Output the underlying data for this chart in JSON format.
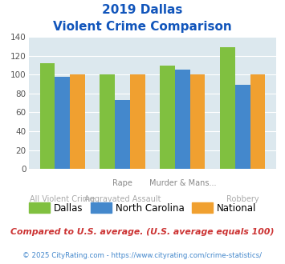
{
  "title_line1": "2019 Dallas",
  "title_line2": "Violent Crime Comparison",
  "cat_labels_top": [
    "",
    "Rape",
    "Murder & Mans...",
    ""
  ],
  "cat_labels_bot": [
    "All Violent Crime",
    "Aggravated Assault",
    "",
    "Robbery"
  ],
  "dallas": [
    112,
    100,
    110,
    129
  ],
  "north_carolina": [
    98,
    73,
    105,
    89
  ],
  "national": [
    100,
    100,
    100,
    100
  ],
  "dallas_color": "#80c040",
  "north_carolina_color": "#4488cc",
  "national_color": "#f0a030",
  "bg_color": "#dce8ee",
  "ylim": [
    0,
    140
  ],
  "yticks": [
    0,
    20,
    40,
    60,
    80,
    100,
    120,
    140
  ],
  "legend_labels": [
    "Dallas",
    "North Carolina",
    "National"
  ],
  "footnote1": "Compared to U.S. average. (U.S. average equals 100)",
  "footnote2": "© 2025 CityRating.com - https://www.cityrating.com/crime-statistics/",
  "title_color": "#1155bb",
  "footnote1_color": "#cc3333",
  "footnote2_color": "#4488cc"
}
